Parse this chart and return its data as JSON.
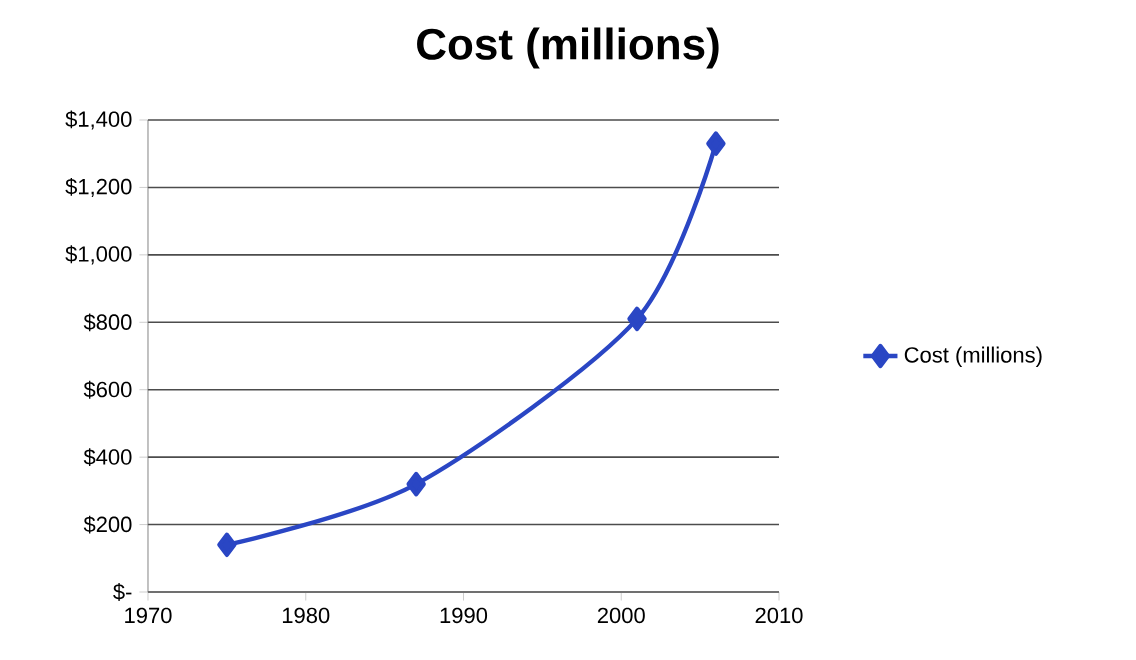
{
  "chart_data": {
    "type": "line",
    "title": "Cost (millions)",
    "x": [
      1975,
      1987,
      2001,
      2006
    ],
    "series": [
      {
        "name": "Cost (millions)",
        "color": "#2a46c4",
        "values": [
          140,
          320,
          810,
          1330
        ]
      }
    ],
    "xlim": [
      1970,
      2010
    ],
    "xticks": [
      1970,
      1980,
      1990,
      2000,
      2010
    ],
    "ylim": [
      0,
      1400
    ],
    "yticks": [
      {
        "value": 0,
        "label": "$-"
      },
      {
        "value": 200,
        "label": "$200"
      },
      {
        "value": 400,
        "label": "$400"
      },
      {
        "value": 600,
        "label": "$600"
      },
      {
        "value": 800,
        "label": "$800"
      },
      {
        "value": 1000,
        "label": "$1,000"
      },
      {
        "value": 1200,
        "label": "$1,200"
      },
      {
        "value": 1400,
        "label": "$1,400"
      }
    ],
    "grid": "y",
    "legend": "right",
    "marker": "diamond",
    "line_style": "solid"
  }
}
